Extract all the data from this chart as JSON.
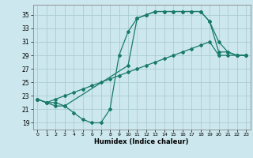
{
  "xlabel": "Humidex (Indice chaleur)",
  "bg_color": "#cce8ee",
  "grid_color": "#aaccd0",
  "line_color": "#1a7a6a",
  "xlim": [
    -0.5,
    23.5
  ],
  "ylim": [
    18.0,
    36.5
  ],
  "xticks": [
    0,
    1,
    2,
    3,
    4,
    5,
    6,
    7,
    8,
    9,
    10,
    11,
    12,
    13,
    14,
    15,
    16,
    17,
    18,
    19,
    20,
    21,
    22,
    23
  ],
  "yticks": [
    19,
    21,
    23,
    25,
    27,
    29,
    31,
    33,
    35
  ],
  "line1_x": [
    0,
    1,
    2,
    3,
    4,
    5,
    6,
    7,
    8,
    9,
    10,
    11,
    12,
    13,
    14,
    15,
    16,
    17,
    18,
    19,
    20,
    21,
    22,
    23
  ],
  "line1_y": [
    22.5,
    22.0,
    22.5,
    23.0,
    23.5,
    24.0,
    24.5,
    25.0,
    25.5,
    26.0,
    26.5,
    27.0,
    27.5,
    28.0,
    28.5,
    29.0,
    29.5,
    30.0,
    30.5,
    31.0,
    29.0,
    29.0,
    29.0,
    29.0
  ],
  "line2_x": [
    0,
    1,
    2,
    3,
    10,
    11,
    12,
    13,
    14,
    15,
    16,
    17,
    18,
    19,
    20,
    21,
    22,
    23
  ],
  "line2_y": [
    22.5,
    22.0,
    22.0,
    21.5,
    27.5,
    34.5,
    35.0,
    35.5,
    35.5,
    35.5,
    35.5,
    35.5,
    35.5,
    34.0,
    31.0,
    29.5,
    29.0,
    29.0
  ],
  "line3_x": [
    0,
    1,
    2,
    3,
    4,
    5,
    6,
    7,
    8,
    9,
    10,
    11,
    12,
    13,
    14,
    15,
    16,
    17,
    18,
    19,
    20,
    21,
    22,
    23
  ],
  "line3_y": [
    22.5,
    22.0,
    21.5,
    21.5,
    20.5,
    19.5,
    19.0,
    19.0,
    21.0,
    29.0,
    32.5,
    34.5,
    35.0,
    35.5,
    35.5,
    35.5,
    35.5,
    35.5,
    35.5,
    34.0,
    29.5,
    29.5,
    29.0,
    29.0
  ]
}
